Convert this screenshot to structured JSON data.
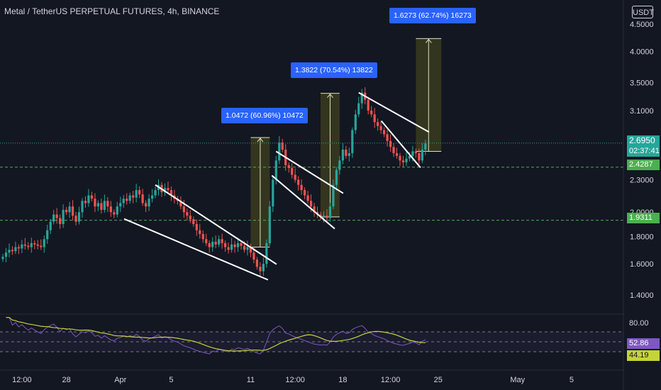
{
  "header": {
    "title": "Metal / TetherUS PERPETUAL FUTURES, 4h, BINANCE",
    "currency": "USDT"
  },
  "price_axis": {
    "ticks": [
      "4.5000",
      "4.0000",
      "3.5000",
      "3.1000",
      "2.3000",
      "2.0000",
      "1.8000",
      "1.6000",
      "1.4000"
    ],
    "scale": "log"
  },
  "time_axis": {
    "ticks": [
      "12:00",
      "28",
      "Apr",
      "5",
      "11",
      "12:00",
      "18",
      "12:00",
      "25",
      "May",
      "5"
    ]
  },
  "current_price": {
    "value": "2.6950",
    "countdown": "02:37:41",
    "color": "#26a69a"
  },
  "horizontal_levels": [
    {
      "value": "2.4287",
      "color": "#4caf50"
    },
    {
      "value": "1.9311",
      "color": "#4caf50"
    }
  ],
  "measurements": [
    {
      "label": "1.0472 (60.96%) 10472",
      "from": 1.72,
      "to": 2.76
    },
    {
      "label": "1.3822 (70.54%) 13822",
      "from": 1.96,
      "to": 3.34
    },
    {
      "label": "1.6273 (62.74%) 16273",
      "from": 2.6,
      "to": 4.23
    }
  ],
  "rsi": {
    "value": "52.86",
    "ma_value": "44.19",
    "top_label": "80.00",
    "levels": [
      70,
      50,
      30
    ],
    "rsi_color": "#7e57c2",
    "ma_color": "#c6d339"
  },
  "colors": {
    "up": "#26a69a",
    "down": "#ef5350",
    "background": "#131722",
    "measure_fill": "#3b3b1d",
    "measure_label": "#2962ff"
  },
  "chart_data": {
    "type": "candlestick",
    "title": "Metal / TetherUS PERPETUAL FUTURES, 4h, BINANCE",
    "y_scale": "log",
    "ylim": [
      1.3,
      4.7
    ],
    "x_ticks": [
      "12:00",
      "28",
      "Apr",
      "5",
      "11",
      "12:00",
      "18",
      "12:00",
      "25",
      "May",
      "5"
    ],
    "close_series": [
      1.65,
      1.68,
      1.7,
      1.69,
      1.72,
      1.71,
      1.74,
      1.73,
      1.72,
      1.75,
      1.74,
      1.73,
      1.72,
      1.78,
      1.85,
      1.92,
      1.98,
      1.95,
      1.9,
      2.02,
      2.0,
      2.05,
      1.97,
      1.92,
      2.0,
      2.1,
      2.08,
      2.15,
      2.12,
      2.05,
      2.08,
      2.02,
      2.1,
      2.05,
      2.0,
      1.98,
      2.05,
      2.08,
      2.12,
      2.1,
      2.15,
      2.13,
      2.2,
      2.16,
      2.08,
      2.05,
      2.12,
      2.15,
      2.2,
      2.25,
      2.18,
      2.22,
      2.2,
      2.15,
      2.12,
      2.1,
      2.05,
      2.0,
      1.97,
      1.94,
      1.9,
      1.85,
      1.82,
      1.78,
      1.75,
      1.72,
      1.76,
      1.74,
      1.78,
      1.75,
      1.72,
      1.7,
      1.74,
      1.72,
      1.75,
      1.73,
      1.7,
      1.72,
      1.68,
      1.63,
      1.58,
      1.55,
      1.6,
      1.75,
      2.05,
      2.3,
      2.5,
      2.7,
      2.62,
      2.45,
      2.42,
      2.35,
      2.3,
      2.25,
      2.2,
      2.15,
      2.1,
      2.05,
      2.0,
      1.98,
      1.96,
      1.97,
      1.95,
      2.05,
      2.25,
      2.4,
      2.5,
      2.62,
      2.55,
      2.58,
      2.85,
      3.05,
      3.2,
      3.35,
      3.25,
      3.1,
      3.05,
      2.95,
      2.9,
      2.85,
      2.8,
      2.72,
      2.65,
      2.58,
      2.55,
      2.5,
      2.48,
      2.52,
      2.55,
      2.6,
      2.58,
      2.5,
      2.62,
      2.69
    ],
    "channels": [
      {
        "name": "",
        "start_index": 48,
        "end_index": 83,
        "start_price": 2.25,
        "end_price": 1.54
      },
      {
        "name": "",
        "start_index": 86,
        "end_index": 104,
        "start_price": 2.6,
        "end_price": 1.92
      },
      {
        "name": "",
        "start_index": 112,
        "end_index": 131,
        "start_price": 3.35,
        "end_price": 2.5
      }
    ],
    "levels": [
      2.4287,
      1.9311
    ],
    "last_price": 2.695,
    "rsi": {
      "value": 52.86,
      "ma": 44.19,
      "range": [
        0,
        100
      ],
      "bands": [
        70,
        50,
        30
      ]
    }
  }
}
